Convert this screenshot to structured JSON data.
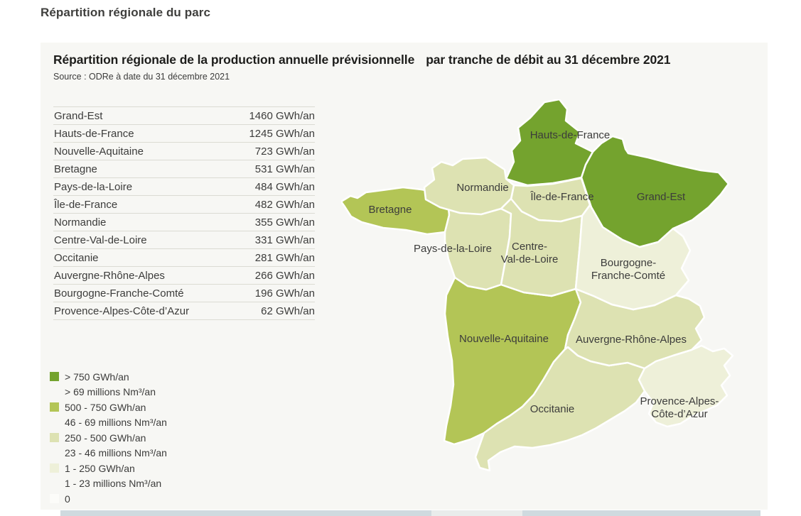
{
  "page": {
    "title": "Répartition régionale du parc"
  },
  "panel": {
    "title_part1": "Répartition régionale de la production annuelle prévisionnelle",
    "title_part2": "par tranche de débit au 31 décembre 2021",
    "source": "Source : ODRe à date du 31 décembre 2021"
  },
  "colors": {
    "panel_bg": "#f7f7f4",
    "level_1": "#74a32e",
    "level_2": "#b3c556",
    "level_3": "#dde2b2",
    "level_4": "#eef0d9",
    "level_5": "#fcfcf9",
    "map_border": "#ffffff",
    "text": "#3c3c3b",
    "strip": "#cfdadf",
    "strip_light": "#e9eceb"
  },
  "chart_data": {
    "type": "choropleth_map_with_table",
    "title": "Répartition régionale de la production annuelle prévisionnelle par tranche de débit au 31 décembre 2021",
    "source": "Source : ODRe à date du 31 décembre 2021",
    "unit": "GWh/an",
    "regions": [
      {
        "name": "Grand-Est",
        "value": 1460,
        "value_label": "1460 GWh/an",
        "level": 1,
        "map_label": [
          "Grand-Est"
        ]
      },
      {
        "name": "Hauts-de-France",
        "value": 1245,
        "value_label": "1245 GWh/an",
        "level": 1,
        "map_label": [
          "Hauts-de-France"
        ]
      },
      {
        "name": "Nouvelle-Aquitaine",
        "value": 723,
        "value_label": "723 GWh/an",
        "level": 2,
        "map_label": [
          "Nouvelle-Aquitaine"
        ]
      },
      {
        "name": "Bretagne",
        "value": 531,
        "value_label": "531 GWh/an",
        "level": 2,
        "map_label": [
          "Bretagne"
        ]
      },
      {
        "name": "Pays-de-la-Loire",
        "value": 484,
        "value_label": "484 GWh/an",
        "level": 3,
        "map_label": [
          "Pays-de-la-Loire"
        ]
      },
      {
        "name": "Île-de-France",
        "value": 482,
        "value_label": "482 GWh/an",
        "level": 3,
        "map_label": [
          "Île-de-France"
        ]
      },
      {
        "name": "Normandie",
        "value": 355,
        "value_label": "355 GWh/an",
        "level": 3,
        "map_label": [
          "Normandie"
        ]
      },
      {
        "name": "Centre-Val-de-Loire",
        "value": 331,
        "value_label": "331 GWh/an",
        "level": 3,
        "map_label": [
          "Centre-",
          "Val-de-Loire"
        ]
      },
      {
        "name": "Occitanie",
        "value": 281,
        "value_label": "281 GWh/an",
        "level": 3,
        "map_label": [
          "Occitanie"
        ]
      },
      {
        "name": "Auvergne-Rhône-Alpes",
        "value": 266,
        "value_label": "266 GWh/an",
        "level": 3,
        "map_label": [
          "Auvergne-Rhône-Alpes"
        ]
      },
      {
        "name": "Bourgogne-Franche-Comté",
        "value": 196,
        "value_label": "196 GWh/an",
        "level": 4,
        "map_label": [
          "Bourgogne-",
          "Franche-Comté"
        ]
      },
      {
        "name": "Provence-Alpes-Côte-d’Azur",
        "value": 62,
        "value_label": "62 GWh/an",
        "level": 4,
        "map_label": [
          "Provence-Alpes-",
          "Côte-d’Azur"
        ]
      }
    ],
    "legend": [
      {
        "level": 1,
        "label": "> 750 GWh/an",
        "sublabel": "> 69 millions Nm³/an"
      },
      {
        "level": 2,
        "label": "500 - 750 GWh/an",
        "sublabel": "46 - 69 millions Nm³/an"
      },
      {
        "level": 3,
        "label": "250 - 500 GWh/an",
        "sublabel": "23 - 46 millions Nm³/an"
      },
      {
        "level": 4,
        "label": "1 - 250 GWh/an",
        "sublabel": "1 - 23 millions Nm³/an"
      },
      {
        "level": 5,
        "label": "0",
        "sublabel": ""
      }
    ],
    "legend_position": "bottom-left",
    "map": "France métropolitaine (hors Corse)"
  }
}
